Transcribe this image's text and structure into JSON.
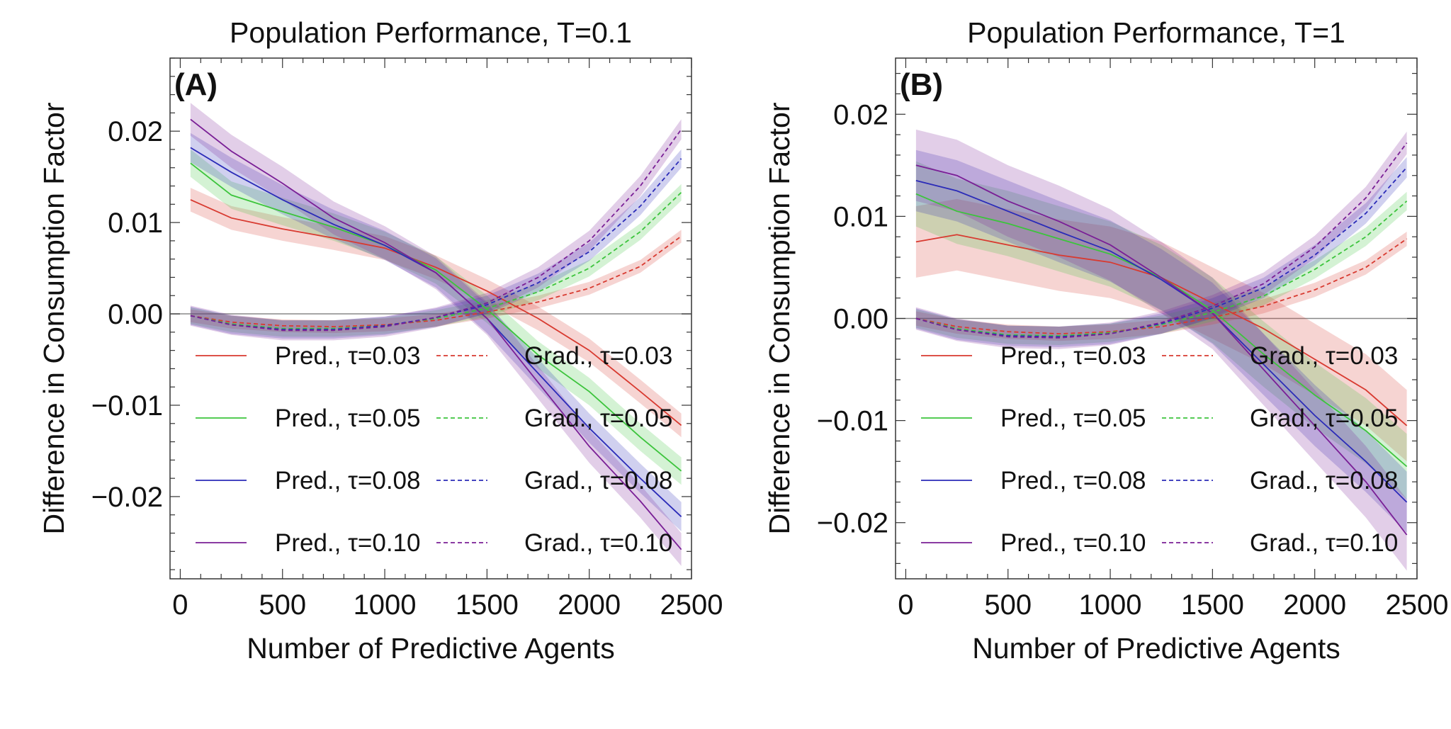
{
  "colors": {
    "tau_0.03": "#d83a30",
    "tau_0.05": "#3cc43c",
    "tau_0.08": "#2b2bb8",
    "tau_0.10": "#7a1f96",
    "axis": "#333333",
    "zero_line": "#888888"
  },
  "legend_entries": [
    {
      "pred": "Pred., τ=0.03",
      "grad": "Grad., τ=0.03",
      "color_key": "tau_0.03"
    },
    {
      "pred": "Pred., τ=0.05",
      "grad": "Grad., τ=0.05",
      "color_key": "tau_0.05"
    },
    {
      "pred": "Pred., τ=0.08",
      "grad": "Grad., τ=0.08",
      "color_key": "tau_0.08"
    },
    {
      "pred": "Pred., τ=0.10",
      "grad": "Grad., τ=0.10",
      "color_key": "tau_0.10"
    }
  ],
  "chart_data": [
    {
      "type": "line",
      "panel": "(A)",
      "title": "Population Performance, T=0.1",
      "xlabel": "Number of Predictive Agents",
      "ylabel": "Difference in Consumption Factor",
      "xlim": [
        -50,
        2500
      ],
      "ylim": [
        -0.029,
        0.028
      ],
      "xticks": [
        0,
        500,
        1000,
        1500,
        2000,
        2500
      ],
      "xtick_labels": [
        "0",
        "500",
        "1000",
        "1500",
        "2000",
        "2500"
      ],
      "yticks": [
        -0.02,
        -0.01,
        0.0,
        0.01,
        0.02
      ],
      "ytick_labels": [
        "−0.02",
        "−0.01",
        "0.00",
        "0.01",
        "0.02"
      ],
      "x": [
        50,
        250,
        500,
        750,
        1000,
        1250,
        1500,
        1750,
        2000,
        2250,
        2450
      ],
      "series": [
        {
          "name": "Pred., τ=0.03",
          "style": "solid",
          "color_key": "tau_0.03",
          "values": [
            0.0125,
            0.0105,
            0.0093,
            0.0083,
            0.0072,
            0.0051,
            0.0025,
            -0.0005,
            -0.004,
            -0.0085,
            -0.0122
          ],
          "band": 0.0013
        },
        {
          "name": "Pred., τ=0.05",
          "style": "solid",
          "color_key": "tau_0.05",
          "values": [
            0.0165,
            0.013,
            0.0112,
            0.0095,
            0.0075,
            0.0048,
            0.0005,
            -0.0045,
            -0.0085,
            -0.0135,
            -0.0172
          ],
          "band": 0.0015
        },
        {
          "name": "Pred., τ=0.08",
          "style": "solid",
          "color_key": "tau_0.08",
          "values": [
            0.0182,
            0.0155,
            0.0125,
            0.0098,
            0.0075,
            0.0045,
            -0.0005,
            -0.0065,
            -0.0125,
            -0.018,
            -0.0222
          ],
          "band": 0.0016
        },
        {
          "name": "Pred., τ=0.10",
          "style": "solid",
          "color_key": "tau_0.10",
          "values": [
            0.0213,
            0.0178,
            0.0143,
            0.0105,
            0.0078,
            0.0045,
            -0.0005,
            -0.0075,
            -0.0145,
            -0.0205,
            -0.0258
          ],
          "band": 0.0018
        },
        {
          "name": "Grad., τ=0.03",
          "style": "dashed",
          "color_key": "tau_0.03",
          "values": [
            -0.0002,
            -0.0009,
            -0.0013,
            -0.0014,
            -0.0012,
            -0.0007,
            0.0002,
            0.0013,
            0.0028,
            0.0052,
            0.0085
          ],
          "band": 0.0007
        },
        {
          "name": "Grad., τ=0.05",
          "style": "dashed",
          "color_key": "tau_0.05",
          "values": [
            -0.0002,
            -0.0011,
            -0.0016,
            -0.0016,
            -0.0013,
            -0.0005,
            0.0006,
            0.0024,
            0.005,
            0.009,
            0.0133
          ],
          "band": 0.0009
        },
        {
          "name": "Grad., τ=0.08",
          "style": "dashed",
          "color_key": "tau_0.08",
          "values": [
            -0.0002,
            -0.0012,
            -0.0017,
            -0.0017,
            -0.0013,
            -0.0004,
            0.001,
            0.0034,
            0.0068,
            0.0118,
            0.017
          ],
          "band": 0.001
        },
        {
          "name": "Grad., τ=0.10",
          "style": "dashed",
          "color_key": "tau_0.10",
          "values": [
            -0.0002,
            -0.0012,
            -0.0018,
            -0.0018,
            -0.0014,
            -0.0004,
            0.0012,
            0.004,
            0.008,
            0.014,
            0.0202
          ],
          "band": 0.0011
        }
      ]
    },
    {
      "type": "line",
      "panel": "(B)",
      "title": "Population Performance, T=1",
      "xlabel": "Number of Predictive Agents",
      "ylabel": "Difference in Consumption Factor",
      "xlim": [
        -50,
        2500
      ],
      "ylim": [
        -0.0255,
        0.0255
      ],
      "xticks": [
        0,
        500,
        1000,
        1500,
        2000,
        2500
      ],
      "xtick_labels": [
        "0",
        "500",
        "1000",
        "1500",
        "2000",
        "2500"
      ],
      "yticks": [
        -0.02,
        -0.01,
        0.0,
        0.01,
        0.02
      ],
      "ytick_labels": [
        "−0.02",
        "−0.01",
        "0.00",
        "0.01",
        "0.02"
      ],
      "x": [
        50,
        250,
        500,
        750,
        1000,
        1250,
        1500,
        1750,
        2000,
        2250,
        2450
      ],
      "series": [
        {
          "name": "Pred., τ=0.03",
          "style": "solid",
          "color_key": "tau_0.03",
          "values": [
            0.0075,
            0.0082,
            0.0072,
            0.0062,
            0.0055,
            0.004,
            0.0015,
            -0.001,
            -0.004,
            -0.007,
            -0.0105
          ],
          "band": 0.0035
        },
        {
          "name": "Pred., τ=0.05",
          "style": "solid",
          "color_key": "tau_0.05",
          "values": [
            0.0122,
            0.0105,
            0.0093,
            0.0078,
            0.0063,
            0.004,
            0.0008,
            -0.0035,
            -0.0075,
            -0.011,
            -0.0145
          ],
          "band": 0.0032
        },
        {
          "name": "Pred., τ=0.08",
          "style": "solid",
          "color_key": "tau_0.08",
          "values": [
            0.0135,
            0.0125,
            0.0105,
            0.0085,
            0.0066,
            0.0038,
            0.0005,
            -0.0045,
            -0.0095,
            -0.014,
            -0.018
          ],
          "band": 0.003
        },
        {
          "name": "Pred., τ=0.10",
          "style": "solid",
          "color_key": "tau_0.10",
          "values": [
            0.015,
            0.014,
            0.0115,
            0.0095,
            0.0072,
            0.004,
            0.0005,
            -0.005,
            -0.0105,
            -0.016,
            -0.0212
          ],
          "band": 0.0035
        },
        {
          "name": "Grad., τ=0.03",
          "style": "dashed",
          "color_key": "tau_0.03",
          "values": [
            0.0,
            -0.0008,
            -0.0013,
            -0.0015,
            -0.0013,
            -0.0008,
            0.0001,
            0.0012,
            0.0028,
            0.005,
            0.0078
          ],
          "band": 0.0007
        },
        {
          "name": "Grad., τ=0.05",
          "style": "dashed",
          "color_key": "tau_0.05",
          "values": [
            0.0,
            -0.001,
            -0.0016,
            -0.0017,
            -0.0014,
            -0.0006,
            0.0006,
            0.0022,
            0.0048,
            0.008,
            0.0115
          ],
          "band": 0.0009
        },
        {
          "name": "Grad., τ=0.08",
          "style": "dashed",
          "color_key": "tau_0.08",
          "values": [
            0.0,
            -0.0011,
            -0.0017,
            -0.0018,
            -0.0015,
            -0.0005,
            0.001,
            0.003,
            0.0062,
            0.0103,
            0.0148
          ],
          "band": 0.001
        },
        {
          "name": "Grad., τ=0.10",
          "style": "dashed",
          "color_key": "tau_0.10",
          "values": [
            0.0,
            -0.0011,
            -0.0018,
            -0.0019,
            -0.0015,
            -0.0004,
            0.0012,
            0.0034,
            0.007,
            0.0118,
            0.0172
          ],
          "band": 0.0011
        }
      ]
    }
  ]
}
